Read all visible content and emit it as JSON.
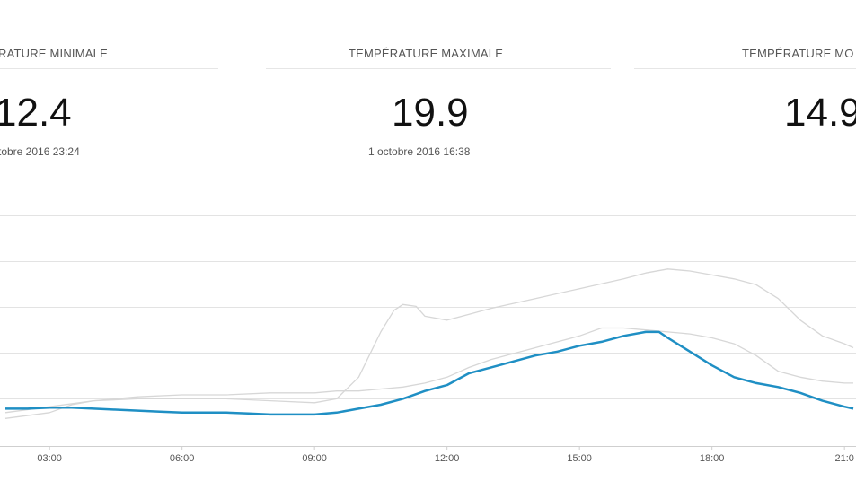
{
  "stats": {
    "min": {
      "label": "RATURE MINIMALE",
      "value": "12.4",
      "date": "tobre 2016 23:24"
    },
    "max": {
      "label": "TEMPÉRATURE MAXIMALE",
      "value": "19.9",
      "date": "1 octobre 2016 16:38"
    },
    "avg": {
      "label": "TEMPÉRATURE MO",
      "value": "14.9",
      "date": ""
    }
  },
  "colors": {
    "main_line": "#1f8fc4",
    "ref_line": "#d7d7d7",
    "grid": "#e3e3e3"
  },
  "chart_data": {
    "type": "line",
    "title": "",
    "xlabel": "",
    "ylabel": "",
    "x_ticks": [
      "03:00",
      "06:00",
      "09:00",
      "12:00",
      "15:00",
      "18:00",
      "21:0"
    ],
    "xlim": [
      2,
      21.2
    ],
    "ylim": [
      11,
      22
    ],
    "grid": true,
    "legend": "none",
    "series": [
      {
        "role": "main",
        "x": [
          2.0,
          2.5,
          3.0,
          3.5,
          4.0,
          4.5,
          5.0,
          5.5,
          6.0,
          6.5,
          7.0,
          7.5,
          8.0,
          8.5,
          9.0,
          9.5,
          10.0,
          10.5,
          11.0,
          11.5,
          12.0,
          12.5,
          13.0,
          13.5,
          14.0,
          14.5,
          15.0,
          15.5,
          16.0,
          16.5,
          16.8,
          17.0,
          17.5,
          18.0,
          18.5,
          19.0,
          19.5,
          20.0,
          20.5,
          21.0,
          21.2
        ],
        "y": [
          12.9,
          12.9,
          12.95,
          12.95,
          12.9,
          12.85,
          12.8,
          12.75,
          12.7,
          12.7,
          12.7,
          12.65,
          12.6,
          12.6,
          12.6,
          12.7,
          12.9,
          13.1,
          13.4,
          13.8,
          14.1,
          14.7,
          15.0,
          15.3,
          15.6,
          15.8,
          16.1,
          16.3,
          16.6,
          16.8,
          16.8,
          16.5,
          15.8,
          15.1,
          14.5,
          14.2,
          14.0,
          13.7,
          13.3,
          13.0,
          12.9
        ]
      },
      {
        "role": "upper",
        "x": [
          2.0,
          3.0,
          4.0,
          5.0,
          6.0,
          7.0,
          8.0,
          9.0,
          9.5,
          10.0,
          10.5,
          10.8,
          11.0,
          11.3,
          11.5,
          12.0,
          12.5,
          13.0,
          14.0,
          15.0,
          16.0,
          16.5,
          17.0,
          17.5,
          18.0,
          18.5,
          19.0,
          19.5,
          20.0,
          20.5,
          21.0,
          21.2
        ],
        "y": [
          12.7,
          13.0,
          13.3,
          13.4,
          13.4,
          13.4,
          13.3,
          13.2,
          13.4,
          14.5,
          16.8,
          17.9,
          18.2,
          18.1,
          17.6,
          17.4,
          17.7,
          18.0,
          18.5,
          19.0,
          19.5,
          19.8,
          20.0,
          19.9,
          19.7,
          19.5,
          19.2,
          18.5,
          17.4,
          16.6,
          16.2,
          16.0
        ]
      },
      {
        "role": "lower",
        "x": [
          2.0,
          3.0,
          3.5,
          4.0,
          5.0,
          6.0,
          7.0,
          8.0,
          9.0,
          9.5,
          10.0,
          10.5,
          11.0,
          11.5,
          12.0,
          12.5,
          13.0,
          14.0,
          15.0,
          15.5,
          16.0,
          16.5,
          17.0,
          17.5,
          18.0,
          18.5,
          19.0,
          19.5,
          20.0,
          20.5,
          21.0,
          21.2
        ],
        "y": [
          12.4,
          12.7,
          13.1,
          13.3,
          13.5,
          13.6,
          13.6,
          13.7,
          13.7,
          13.8,
          13.8,
          13.9,
          14.0,
          14.2,
          14.5,
          15.0,
          15.4,
          16.0,
          16.6,
          17.0,
          17.0,
          16.9,
          16.8,
          16.7,
          16.5,
          16.2,
          15.6,
          14.8,
          14.5,
          14.3,
          14.2,
          14.2
        ]
      }
    ]
  }
}
